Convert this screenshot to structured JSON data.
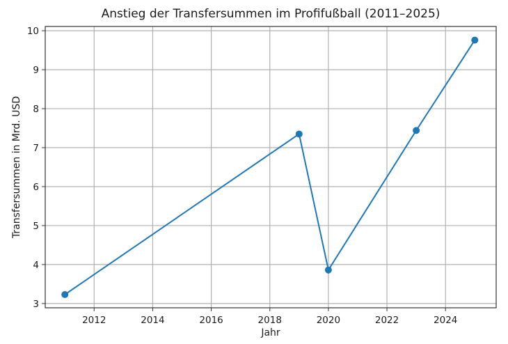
{
  "chart_data": {
    "type": "line",
    "title": "Anstieg der Transfersummen im Profifußball (2011–2025)",
    "xlabel": "Jahr",
    "ylabel": "Transfersummen in Mrd. USD",
    "x": [
      2011,
      2019,
      2020,
      2023,
      2025
    ],
    "series": [
      {
        "name": "Transfersummen",
        "values": [
          3.23,
          7.35,
          3.86,
          7.44,
          9.76
        ],
        "color": "#1f77b4",
        "marker": "circle"
      }
    ],
    "xlim": [
      2010.33,
      2025.73
    ],
    "ylim": [
      2.89,
      10.11
    ],
    "xticks": [
      2012,
      2014,
      2016,
      2018,
      2020,
      2022,
      2024
    ],
    "yticks": [
      3,
      4,
      5,
      6,
      7,
      8,
      9,
      10
    ],
    "grid": true,
    "legend": null
  },
  "colors": {
    "line": "#1f77b4",
    "grid": "#b0b0b0",
    "axes": "#333333"
  }
}
